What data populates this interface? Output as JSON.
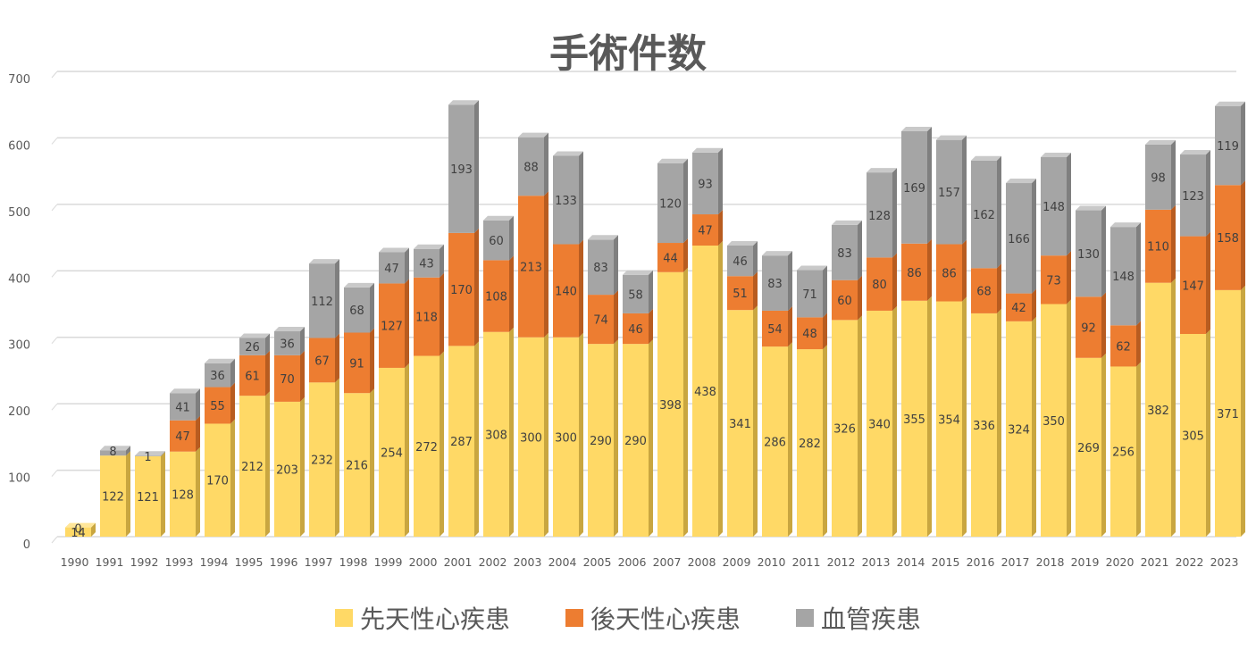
{
  "colors": {
    "congenital": "#FFD966",
    "acquired": "#ED7D31",
    "vascular": "#A5A5A5",
    "grid": "#D9D9D9",
    "text": "#595959"
  },
  "chart_data": {
    "type": "bar",
    "stacked": true,
    "title": "手術件数",
    "xlabel": "",
    "ylabel": "",
    "ylim": [
      0,
      700
    ],
    "yticks": [
      0,
      100,
      200,
      300,
      400,
      500,
      600,
      700
    ],
    "grid": true,
    "legend_position": "bottom",
    "categories": [
      "1990",
      "1991",
      "1992",
      "1993",
      "1994",
      "1995",
      "1996",
      "1997",
      "1998",
      "1999",
      "2000",
      "2001",
      "2002",
      "2003",
      "2004",
      "2005",
      "2006",
      "2007",
      "2008",
      "2009",
      "2010",
      "2011",
      "2012",
      "2013",
      "2014",
      "2015",
      "2016",
      "2017",
      "2018",
      "2019",
      "2020",
      "2021",
      "2022",
      "2023"
    ],
    "series": [
      {
        "name": "先天性心疾患",
        "values": [
          14,
          122,
          121,
          128,
          170,
          212,
          203,
          232,
          216,
          254,
          272,
          287,
          308,
          300,
          300,
          290,
          290,
          398,
          438,
          341,
          286,
          282,
          326,
          340,
          355,
          354,
          336,
          324,
          350,
          269,
          256,
          382,
          305,
          371
        ]
      },
      {
        "name": "後天性心疾患",
        "values": [
          0,
          0,
          0,
          47,
          55,
          61,
          70,
          67,
          91,
          127,
          118,
          170,
          108,
          213,
          140,
          74,
          46,
          44,
          47,
          51,
          54,
          48,
          60,
          80,
          86,
          86,
          68,
          42,
          73,
          92,
          62,
          110,
          147,
          158
        ]
      },
      {
        "name": "血管疾患",
        "values": [
          0,
          8,
          1,
          41,
          36,
          26,
          36,
          112,
          68,
          47,
          43,
          193,
          60,
          88,
          133,
          83,
          58,
          120,
          93,
          46,
          83,
          71,
          83,
          128,
          169,
          157,
          162,
          166,
          148,
          130,
          148,
          98,
          123,
          119
        ]
      }
    ]
  }
}
